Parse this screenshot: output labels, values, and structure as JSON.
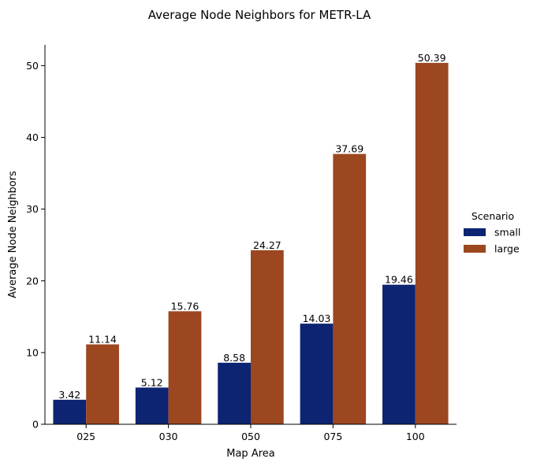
{
  "chart_data": {
    "type": "bar",
    "title": "Average Node Neighbors for METR-LA",
    "xlabel": "Map Area",
    "ylabel": "Average Node Neighbors",
    "categories": [
      "025",
      "030",
      "050",
      "075",
      "100"
    ],
    "series": [
      {
        "name": "small",
        "color": "#0d2472",
        "values": [
          3.42,
          5.12,
          8.58,
          14.03,
          19.46
        ]
      },
      {
        "name": "large",
        "color": "#9c4720",
        "values": [
          11.14,
          15.76,
          24.27,
          37.69,
          50.39
        ]
      }
    ],
    "ylim": [
      0,
      52.9
    ],
    "yticks": [
      0,
      10,
      20,
      30,
      40,
      50
    ],
    "grid": false,
    "legend": {
      "title": "Scenario",
      "placement": "right"
    }
  }
}
